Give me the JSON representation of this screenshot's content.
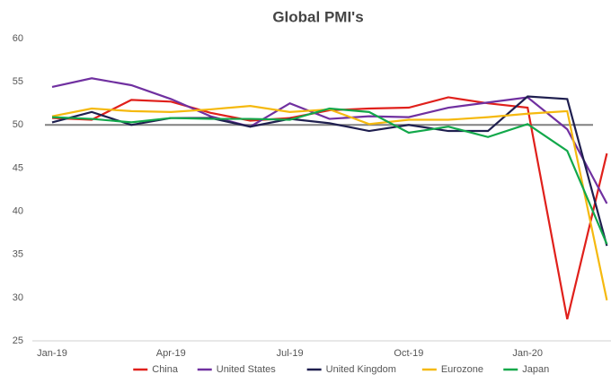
{
  "chart_data": {
    "type": "line",
    "title": "Global PMI's",
    "categories": [
      "Jan-19",
      null,
      null,
      "Apr-19",
      null,
      null,
      "Jul-19",
      null,
      null,
      "Oct-19",
      null,
      null,
      "Jan-20",
      null,
      null
    ],
    "series": [
      {
        "name": "China",
        "color": "#e0201b",
        "values": [
          50.8,
          50.6,
          52.9,
          52.7,
          51.4,
          50.5,
          50.8,
          51.7,
          51.9,
          52.0,
          53.2,
          52.5,
          52.0,
          27.5,
          46.7
        ]
      },
      {
        "name": "United States",
        "color": "#7030a0",
        "values": [
          54.4,
          55.4,
          54.6,
          53.0,
          51.0,
          49.8,
          52.5,
          50.7,
          51.0,
          50.9,
          52.0,
          52.6,
          53.2,
          49.5,
          40.9
        ]
      },
      {
        "name": "United Kingdom",
        "color": "#1f1f4f",
        "values": [
          50.3,
          51.5,
          50.0,
          50.8,
          50.8,
          49.8,
          50.7,
          50.2,
          49.3,
          50.0,
          49.3,
          49.3,
          53.3,
          53.0,
          36.0
        ]
      },
      {
        "name": "Eurozone",
        "color": "#f5b90f",
        "values": [
          51.0,
          51.9,
          51.6,
          51.5,
          51.8,
          52.2,
          51.5,
          51.8,
          50.1,
          50.6,
          50.6,
          50.9,
          51.3,
          51.6,
          29.7
        ]
      },
      {
        "name": "Japan",
        "color": "#12a84a",
        "values": [
          50.9,
          50.7,
          50.3,
          50.8,
          50.7,
          50.7,
          50.6,
          51.9,
          51.5,
          49.1,
          49.8,
          48.6,
          50.1,
          47.0,
          36.2
        ]
      }
    ],
    "ylim": [
      25,
      60
    ],
    "yticks": [
      25,
      30,
      35,
      40,
      45,
      50,
      55,
      60
    ],
    "reference_line": 50,
    "reference_color": "#808080",
    "legend": "bottom"
  }
}
